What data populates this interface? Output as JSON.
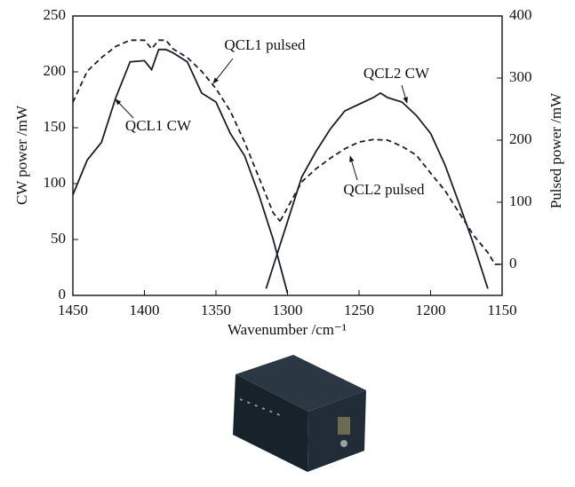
{
  "chart_data": {
    "type": "line",
    "xlabel": "Wavenumber /cm⁻¹",
    "ylabel": "CW power /mW",
    "y2label": "Pulsed power /mW",
    "xlim": [
      1450,
      1150
    ],
    "xticks": [
      1450,
      1400,
      1350,
      1300,
      1250,
      1200,
      1150
    ],
    "ylim": [
      0,
      250
    ],
    "yticks": [
      0,
      50,
      100,
      150,
      200,
      250
    ],
    "y2lim": [
      -50,
      400
    ],
    "y2ticks": [
      0,
      100,
      200,
      300,
      400
    ],
    "series": [
      {
        "name": "QCL1 CW",
        "color": "#1b1f2a",
        "line_style": "solid",
        "x": [
          1450,
          1440,
          1430,
          1420,
          1410,
          1400,
          1395,
          1390,
          1385,
          1380,
          1370,
          1360,
          1350,
          1340,
          1330,
          1320,
          1310,
          1300
        ],
        "values": [
          90,
          121,
          137,
          177,
          209,
          210,
          202,
          220,
          220,
          217,
          209,
          181,
          173,
          145,
          125,
          90,
          50,
          2
        ]
      },
      {
        "name": "QCL1 pulsed",
        "color": "#1b1f2a",
        "line_style": "dashed",
        "axis": "y2",
        "x": [
          1450,
          1440,
          1430,
          1420,
          1410,
          1400,
          1395,
          1390,
          1385,
          1380,
          1370,
          1360,
          1350,
          1340,
          1330,
          1320,
          1310,
          1305
        ],
        "values": [
          261,
          311,
          333,
          351,
          361,
          361,
          347,
          361,
          361,
          347,
          333,
          311,
          283,
          247,
          197,
          140,
          83,
          69
        ]
      },
      {
        "name": "QCL2 CW",
        "color": "#1b1f2a",
        "line_style": "solid",
        "x": [
          1315,
          1300,
          1290,
          1280,
          1270,
          1260,
          1250,
          1240,
          1235,
          1230,
          1220,
          1210,
          1200,
          1190,
          1180,
          1170,
          1160
        ],
        "values": [
          6,
          66,
          106,
          129,
          149,
          165,
          171,
          177,
          181,
          177,
          173,
          161,
          145,
          117,
          82,
          46,
          6
        ]
      },
      {
        "name": "QCL2 pulsed",
        "color": "#1b1f2a",
        "line_style": "dashed",
        "axis": "y2",
        "x": [
          1305,
          1290,
          1280,
          1270,
          1260,
          1250,
          1240,
          1230,
          1220,
          1210,
          1200,
          1190,
          1180,
          1170,
          1160,
          1155,
          1150
        ],
        "values": [
          70,
          133,
          154,
          171,
          186,
          197,
          201,
          200,
          190,
          176,
          147,
          119,
          83,
          47,
          19,
          0,
          0
        ]
      }
    ]
  }
}
